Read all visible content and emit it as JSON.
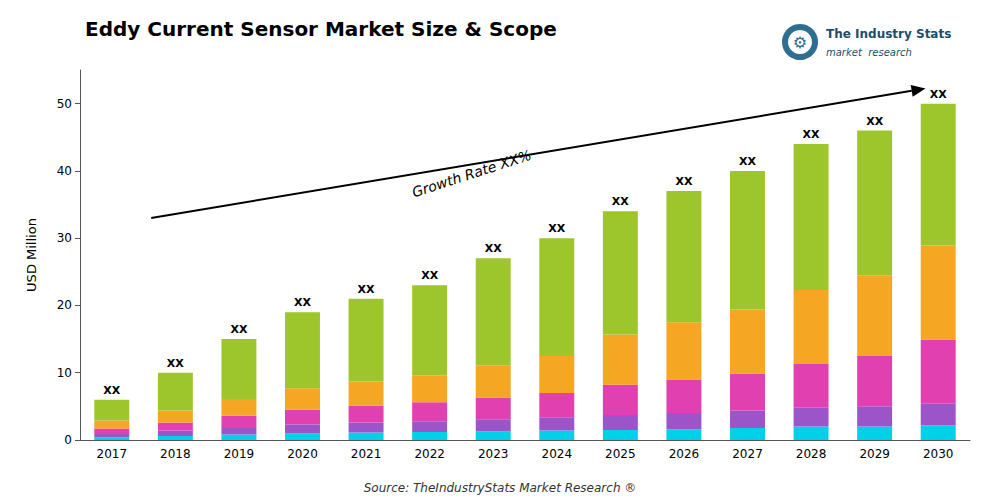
{
  "chart_data": {
    "type": "bar",
    "stacked": true,
    "title": "Eddy Current Sensor Market Size & Scope",
    "ylabel": "USD Million",
    "source": "Source: TheIndustryStats Market Research ®",
    "categories": [
      "2017",
      "2018",
      "2019",
      "2020",
      "2021",
      "2022",
      "2023",
      "2024",
      "2025",
      "2026",
      "2027",
      "2028",
      "2029",
      "2030"
    ],
    "series": [
      {
        "color": "#00d0e8",
        "values": [
          0.4,
          0.6,
          0.8,
          1.0,
          1.1,
          1.2,
          1.3,
          1.4,
          1.5,
          1.6,
          1.8,
          2.0,
          2.0,
          2.2
        ]
      },
      {
        "color": "#9b55c8",
        "values": [
          0.5,
          0.8,
          1.0,
          1.3,
          1.5,
          1.6,
          1.8,
          2.0,
          2.2,
          2.4,
          2.6,
          2.8,
          3.0,
          3.2
        ]
      },
      {
        "color": "#e040b0",
        "values": [
          0.8,
          1.2,
          1.8,
          2.2,
          2.5,
          2.8,
          3.2,
          3.6,
          4.5,
          5.0,
          5.5,
          6.5,
          7.5,
          9.5
        ]
      },
      {
        "color": "#f5a623",
        "values": [
          1.2,
          1.8,
          2.5,
          3.2,
          3.6,
          4.0,
          4.8,
          5.5,
          7.5,
          8.5,
          9.5,
          11.0,
          12.0,
          14.0
        ]
      },
      {
        "color": "#9dc62d",
        "values": [
          3.1,
          5.6,
          8.9,
          11.3,
          12.3,
          13.4,
          15.9,
          17.5,
          18.3,
          19.5,
          20.6,
          21.7,
          21.5,
          21.1
        ]
      }
    ],
    "bar_labels": [
      "XX",
      "XX",
      "XX",
      "XX",
      "XX",
      "XX",
      "XX",
      "XX",
      "XX",
      "XX",
      "XX",
      "XX",
      "XX",
      "XX"
    ],
    "annotation": "Growth Rate XX%",
    "logo_icon": "⚙",
    "logo_text": [
      "The Industry Stats",
      "market  research"
    ],
    "ylim": [
      0,
      55
    ],
    "yticks": [
      0,
      10,
      20,
      30,
      40,
      50
    ],
    "grid": false
  }
}
